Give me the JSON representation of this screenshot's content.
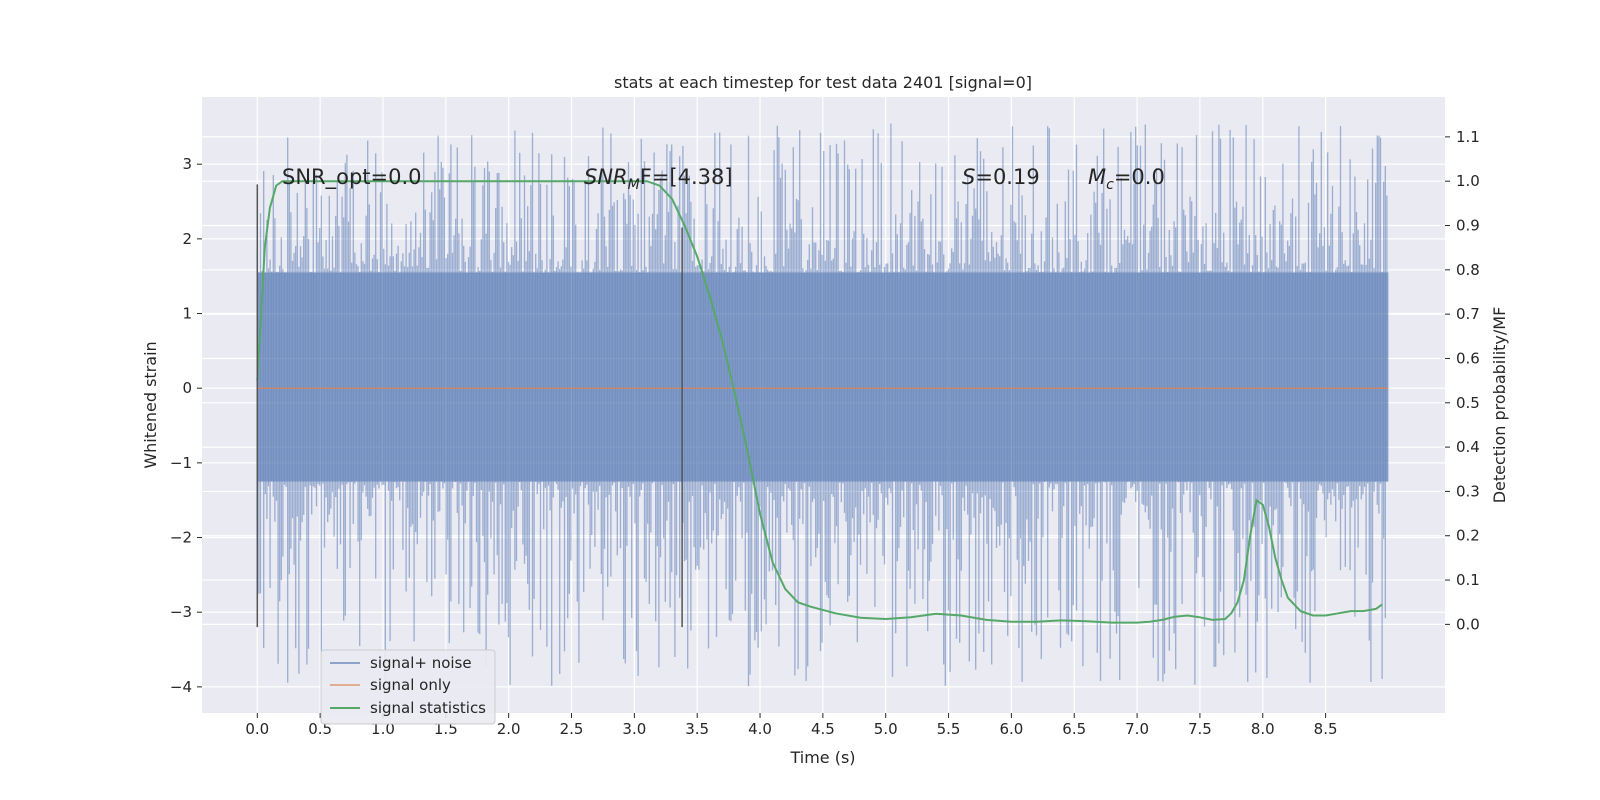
{
  "chart_data": {
    "type": "line",
    "title": "stats at each timestep for test data 2401 [signal=0]",
    "xlabel": "Time (s)",
    "ylabel": "Whitened strain",
    "y2label": "Detection probability/MF",
    "xlim": [
      -0.44,
      9.45
    ],
    "ylim": [
      -4.35,
      3.9
    ],
    "y2lim": [
      -0.2,
      1.19
    ],
    "xticks": [
      0.0,
      0.5,
      1.0,
      1.5,
      2.0,
      2.5,
      3.0,
      3.5,
      4.0,
      4.5,
      5.0,
      5.5,
      6.0,
      6.5,
      7.0,
      7.5,
      8.0,
      8.5
    ],
    "xtick_labels": [
      "0.0",
      "0.5",
      "1.0",
      "1.5",
      "2.0",
      "2.5",
      "3.0",
      "3.5",
      "4.0",
      "4.5",
      "5.0",
      "5.5",
      "6.0",
      "6.5",
      "7.0",
      "7.5",
      "8.0",
      "8.5"
    ],
    "yticks": [
      3,
      2,
      1,
      0,
      -1,
      -2,
      -3,
      -4
    ],
    "ytick_labels": [
      "3",
      "2",
      "1",
      "0",
      "−1",
      "−2",
      "−3",
      "−4"
    ],
    "y2ticks": [
      1.1,
      1.0,
      0.9,
      0.8,
      0.7,
      0.6,
      0.5,
      0.4,
      0.3,
      0.2,
      0.1,
      0.0
    ],
    "y2tick_labels": [
      "1.1",
      "1.0",
      "0.9",
      "0.8",
      "0.7",
      "0.6",
      "0.5",
      "0.4",
      "0.3",
      "0.2",
      "0.1",
      "0.0"
    ],
    "grid": true,
    "legend_position": "lower-left",
    "annotations": {
      "snr_opt": "SNR_opt=0.0",
      "snr_mf_main": "SNR",
      "snr_mf_sub": "M",
      "snr_mf_rest": "F=[4.38]",
      "s_main": "S",
      "s_rest": "=0.19",
      "mc_main": "M",
      "mc_sub": "c",
      "mc_rest": "=0.0"
    },
    "vertical_markers": [
      {
        "x": 0.0,
        "y_from": -3.2,
        "y_to": 2.73
      },
      {
        "x": 3.38,
        "y_from": -3.2,
        "y_to": 2.15
      }
    ],
    "series": [
      {
        "name": "signal+ noise",
        "color": "#4c72b0",
        "kind": "noise",
        "x_range": [
          0.0,
          9.0
        ],
        "core_range": [
          -1.25,
          1.55
        ],
        "peak_max": 3.55,
        "trough_min": -4.0
      },
      {
        "name": "signal only",
        "color": "#dd8452",
        "kind": "line",
        "x": [
          0.0,
          9.0
        ],
        "y": [
          0.0,
          0.0
        ]
      },
      {
        "name": "signal statistics",
        "color": "#55a868",
        "kind": "line",
        "axis": "right",
        "x": [
          0.0,
          0.03,
          0.06,
          0.1,
          0.15,
          0.2,
          0.3,
          0.5,
          1.0,
          1.5,
          2.0,
          2.5,
          3.0,
          3.1,
          3.2,
          3.3,
          3.4,
          3.5,
          3.6,
          3.7,
          3.8,
          3.9,
          4.0,
          4.1,
          4.2,
          4.3,
          4.4,
          4.6,
          4.8,
          5.0,
          5.2,
          5.4,
          5.6,
          5.8,
          6.0,
          6.2,
          6.4,
          6.6,
          6.8,
          7.0,
          7.1,
          7.2,
          7.3,
          7.4,
          7.5,
          7.6,
          7.7,
          7.75,
          7.8,
          7.85,
          7.9,
          7.95,
          8.0,
          8.05,
          8.1,
          8.15,
          8.2,
          8.3,
          8.4,
          8.5,
          8.6,
          8.7,
          8.8,
          8.9,
          8.95
        ],
        "y": [
          0.55,
          0.7,
          0.85,
          0.94,
          0.99,
          1.0,
          1.0,
          1.0,
          1.0,
          1.0,
          1.0,
          1.0,
          1.0,
          1.0,
          0.99,
          0.96,
          0.9,
          0.83,
          0.74,
          0.64,
          0.52,
          0.39,
          0.25,
          0.14,
          0.08,
          0.05,
          0.04,
          0.025,
          0.015,
          0.012,
          0.016,
          0.024,
          0.02,
          0.01,
          0.006,
          0.006,
          0.009,
          0.007,
          0.004,
          0.004,
          0.006,
          0.01,
          0.017,
          0.02,
          0.016,
          0.01,
          0.012,
          0.025,
          0.05,
          0.1,
          0.2,
          0.28,
          0.27,
          0.22,
          0.15,
          0.1,
          0.06,
          0.03,
          0.02,
          0.02,
          0.025,
          0.03,
          0.03,
          0.035,
          0.045
        ]
      }
    ]
  }
}
